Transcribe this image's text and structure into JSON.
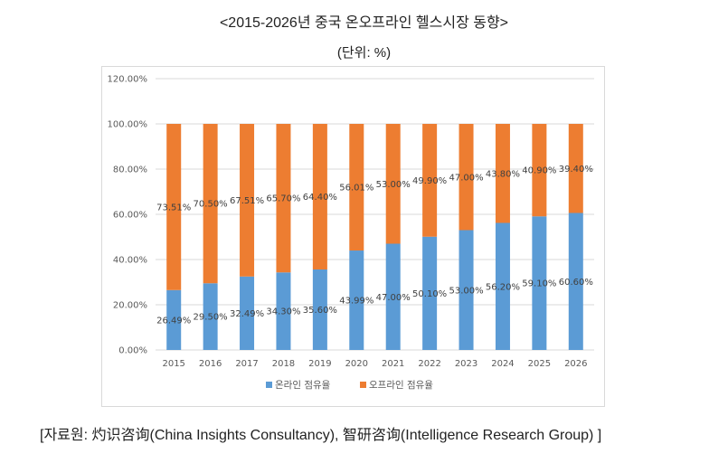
{
  "header": {
    "title": "<2015-2026년 중국 온오프라인 헬스시장 동향>",
    "unit": "(단위: %)"
  },
  "source": "[자료원: 灼识咨询(China Insights Consultancy), 智研咨询(Intelligence Research Group) ]",
  "chart_data": {
    "type": "bar",
    "stacked": true,
    "title": "2015-2026년 중국 온오프라인 헬스시장 동향",
    "xlabel": "",
    "ylabel": "",
    "ylim": [
      0,
      120
    ],
    "yticks": [
      "0.00%",
      "20.00%",
      "40.00%",
      "60.00%",
      "80.00%",
      "100.00%",
      "120.00%"
    ],
    "grid": true,
    "legend": "bottom",
    "categories": [
      "2015",
      "2016",
      "2017",
      "2018",
      "2019",
      "2020",
      "2021",
      "2022",
      "2023",
      "2024",
      "2025",
      "2026"
    ],
    "series": [
      {
        "name": "온라인 점유율",
        "color": "#5b9bd5",
        "values": [
          26.49,
          29.5,
          32.49,
          34.3,
          35.6,
          43.99,
          47.0,
          50.1,
          53.0,
          56.2,
          59.1,
          60.6
        ],
        "labels": [
          "26.49%",
          "29.50%",
          "32.49%",
          "34.30%",
          "35.60%",
          "43.99%",
          "47.00%",
          "50.10%",
          "53.00%",
          "56.20%",
          "59.10%",
          "60.60%"
        ]
      },
      {
        "name": "오프라인 점유율",
        "color": "#ed7d31",
        "values": [
          73.51,
          70.5,
          67.51,
          65.7,
          64.4,
          56.01,
          53.0,
          49.9,
          47.0,
          43.8,
          40.9,
          39.4
        ],
        "labels": [
          "73.51%",
          "70.50%",
          "67.51%",
          "65.70%",
          "64.40%",
          "56.01%",
          "53.00%",
          "49.90%",
          "47.00%",
          "43.80%",
          "40.90%",
          "39.40%"
        ]
      }
    ]
  }
}
